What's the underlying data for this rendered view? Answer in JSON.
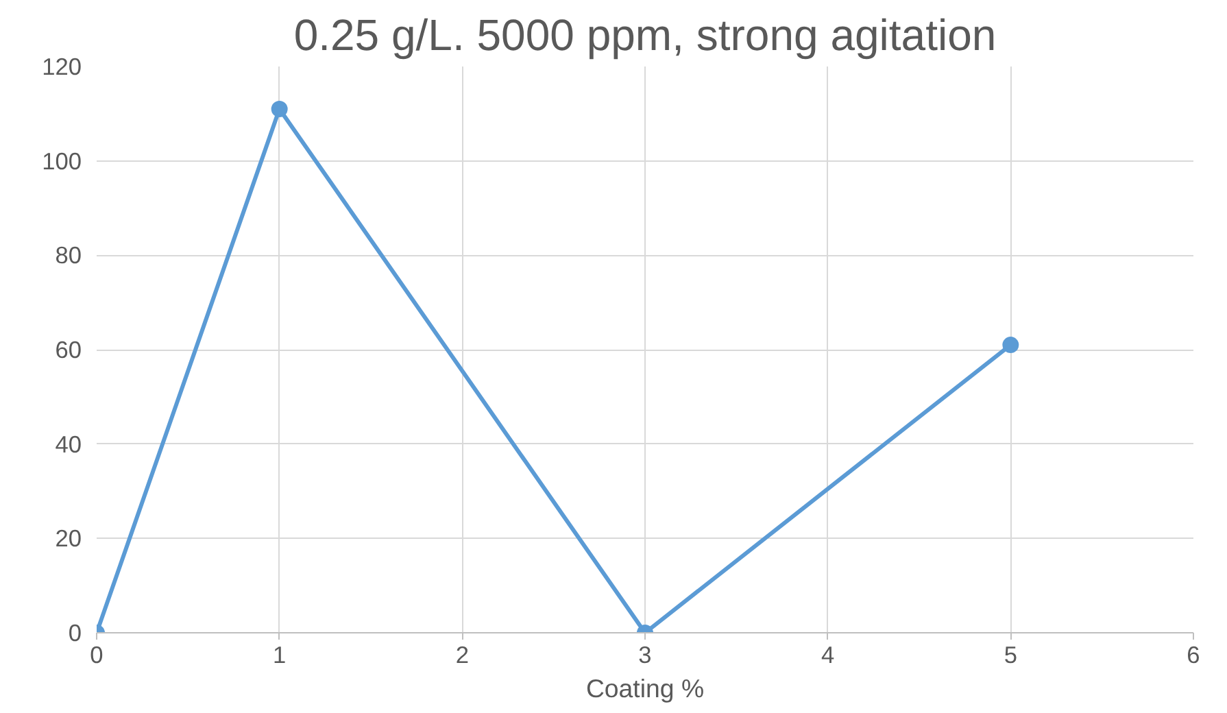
{
  "chart_data": {
    "type": "line",
    "title": "0.25 g/L. 5000 ppm, strong agitation",
    "xlabel": "Coating %",
    "x": [
      0,
      1,
      3,
      5
    ],
    "series": [
      {
        "color": "#5b9bd5",
        "values": [
          0,
          111,
          0,
          61
        ]
      }
    ],
    "xlim": [
      0,
      6
    ],
    "xticks": [
      0,
      1,
      2,
      3,
      4,
      5,
      6
    ],
    "ylim": [
      0,
      120
    ],
    "yticks": [
      0,
      20,
      40,
      60,
      80,
      100,
      120
    ],
    "grid": true,
    "marker": "circle",
    "line_style": "solid"
  }
}
